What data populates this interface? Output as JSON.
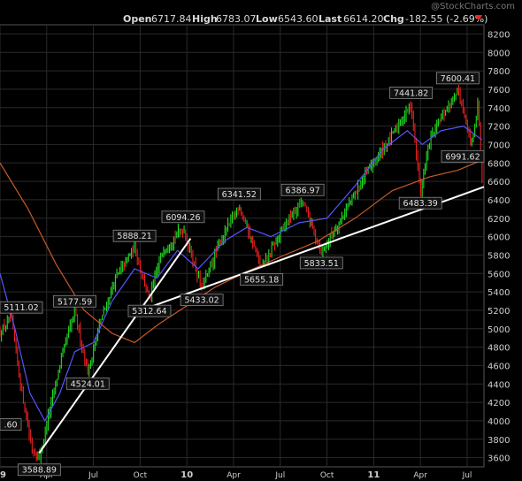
{
  "header": {
    "watermark": "@StockCharts.com",
    "open_label": "Open",
    "open_value": "6717.84",
    "high_label": "High",
    "high_value": "6783.07",
    "low_label": "Low",
    "low_value": "6543.60",
    "last_label": "Last",
    "last_value": "6614.20",
    "chg_label": "Chg",
    "chg_value": "-182.55 (-2.69%)",
    "chg_icon": "down-triangle-icon",
    "chg_color": "#ff2020"
  },
  "colors": {
    "background": "#000000",
    "grid": "#2a2a2a",
    "up": "#22dd22",
    "down": "#ee2020",
    "ma_short": "#5555ff",
    "ma_long": "#c85a28",
    "trendline": "#ffffff"
  },
  "chart_data": {
    "type": "candlestick",
    "ylim": [
      3500,
      8300
    ],
    "yticks": [
      3600,
      3800,
      4000,
      4200,
      4400,
      4600,
      4800,
      5000,
      5200,
      5400,
      5600,
      5800,
      6000,
      6200,
      6400,
      6600,
      6800,
      7000,
      7200,
      7400,
      7600,
      7800,
      8000,
      8200
    ],
    "xticks": [
      "09",
      "Apr",
      "Jul",
      "Oct",
      "10",
      "Apr",
      "Jul",
      "Oct",
      "11",
      "Apr",
      "Jul"
    ],
    "xtick_t": [
      0,
      0.25,
      0.5,
      0.75,
      1,
      1.25,
      1.5,
      1.75,
      2,
      2.25,
      2.5
    ],
    "x_range_t": [
      0,
      2.59
    ],
    "anchors": [
      {
        "t": 0.0,
        "v": 4950
      },
      {
        "t": 0.06,
        "v": 5111.02
      },
      {
        "t": 0.11,
        "v": 4400
      },
      {
        "t": 0.17,
        "v": 3700
      },
      {
        "t": 0.21,
        "v": 3588.89
      },
      {
        "t": 0.27,
        "v": 4150
      },
      {
        "t": 0.33,
        "v": 4700
      },
      {
        "t": 0.4,
        "v": 5177.59
      },
      {
        "t": 0.47,
        "v": 4524.01
      },
      {
        "t": 0.54,
        "v": 5100
      },
      {
        "t": 0.62,
        "v": 5550
      },
      {
        "t": 0.72,
        "v": 5888.21
      },
      {
        "t": 0.8,
        "v": 5312.64
      },
      {
        "t": 0.87,
        "v": 5850
      },
      {
        "t": 0.98,
        "v": 6094.26
      },
      {
        "t": 1.08,
        "v": 5433.02
      },
      {
        "t": 1.18,
        "v": 5950
      },
      {
        "t": 1.28,
        "v": 6341.52
      },
      {
        "t": 1.4,
        "v": 5655.18
      },
      {
        "t": 1.53,
        "v": 6150
      },
      {
        "t": 1.62,
        "v": 6386.97
      },
      {
        "t": 1.72,
        "v": 5833.51
      },
      {
        "t": 1.84,
        "v": 6250
      },
      {
        "t": 1.98,
        "v": 6750
      },
      {
        "t": 2.1,
        "v": 7100
      },
      {
        "t": 2.2,
        "v": 7441.82
      },
      {
        "t": 2.25,
        "v": 6483.39
      },
      {
        "t": 2.3,
        "v": 7050
      },
      {
        "t": 2.38,
        "v": 7350
      },
      {
        "t": 2.45,
        "v": 7600.41
      },
      {
        "t": 2.52,
        "v": 6991.62
      },
      {
        "t": 2.56,
        "v": 7450
      },
      {
        "t": 2.58,
        "v": 6614.2
      }
    ],
    "ma_short": [
      {
        "t": 0.0,
        "v": 5600
      },
      {
        "t": 0.08,
        "v": 5000
      },
      {
        "t": 0.16,
        "v": 4300
      },
      {
        "t": 0.24,
        "v": 4000
      },
      {
        "t": 0.32,
        "v": 4300
      },
      {
        "t": 0.4,
        "v": 4750
      },
      {
        "t": 0.5,
        "v": 4850
      },
      {
        "t": 0.6,
        "v": 5300
      },
      {
        "t": 0.72,
        "v": 5650
      },
      {
        "t": 0.84,
        "v": 5550
      },
      {
        "t": 0.95,
        "v": 5850
      },
      {
        "t": 1.06,
        "v": 5650
      },
      {
        "t": 1.2,
        "v": 5950
      },
      {
        "t": 1.32,
        "v": 6100
      },
      {
        "t": 1.45,
        "v": 6000
      },
      {
        "t": 1.6,
        "v": 6150
      },
      {
        "t": 1.75,
        "v": 6200
      },
      {
        "t": 1.9,
        "v": 6550
      },
      {
        "t": 2.05,
        "v": 6950
      },
      {
        "t": 2.18,
        "v": 7150
      },
      {
        "t": 2.26,
        "v": 7000
      },
      {
        "t": 2.36,
        "v": 7150
      },
      {
        "t": 2.48,
        "v": 7200
      },
      {
        "t": 2.58,
        "v": 7050
      }
    ],
    "ma_long": [
      {
        "t": 0.0,
        "v": 6800
      },
      {
        "t": 0.15,
        "v": 6300
      },
      {
        "t": 0.3,
        "v": 5700
      },
      {
        "t": 0.45,
        "v": 5200
      },
      {
        "t": 0.6,
        "v": 4950
      },
      {
        "t": 0.72,
        "v": 4850
      },
      {
        "t": 0.85,
        "v": 5050
      },
      {
        "t": 1.0,
        "v": 5250
      },
      {
        "t": 1.15,
        "v": 5450
      },
      {
        "t": 1.3,
        "v": 5600
      },
      {
        "t": 1.5,
        "v": 5780
      },
      {
        "t": 1.7,
        "v": 5950
      },
      {
        "t": 1.9,
        "v": 6200
      },
      {
        "t": 2.1,
        "v": 6500
      },
      {
        "t": 2.3,
        "v": 6650
      },
      {
        "t": 2.45,
        "v": 6720
      },
      {
        "t": 2.58,
        "v": 6830
      }
    ],
    "trendlines": [
      {
        "t1": 0.21,
        "v1": 3650,
        "t2": 1.02,
        "v2": 5980
      },
      {
        "t1": 0.7,
        "v1": 5160,
        "t2": 2.59,
        "v2": 6540
      }
    ],
    "annotations": [
      {
        "text": "5111.02",
        "t": 0.06,
        "v": 5111.02,
        "pos": "above"
      },
      {
        "text": "3588.89",
        "t": 0.21,
        "v": 3588.89,
        "pos": "below"
      },
      {
        "text": "5177.59",
        "t": 0.4,
        "v": 5177.59,
        "pos": "above"
      },
      {
        "text": "4524.01",
        "t": 0.47,
        "v": 4524.01,
        "pos": "below"
      },
      {
        "text": "5888.21",
        "t": 0.72,
        "v": 5888.21,
        "pos": "above"
      },
      {
        "text": "5312.64",
        "t": 0.8,
        "v": 5312.64,
        "pos": "below"
      },
      {
        "text": "6094.26",
        "t": 0.98,
        "v": 6094.26,
        "pos": "above"
      },
      {
        "text": "5433.02",
        "t": 1.08,
        "v": 5433.02,
        "pos": "below"
      },
      {
        "text": "6341.52",
        "t": 1.28,
        "v": 6341.52,
        "pos": "above"
      },
      {
        "text": "5655.18",
        "t": 1.4,
        "v": 5655.18,
        "pos": "below"
      },
      {
        "text": "6386.97",
        "t": 1.62,
        "v": 6386.97,
        "pos": "above"
      },
      {
        "text": "5833.51",
        "t": 1.72,
        "v": 5833.51,
        "pos": "below"
      },
      {
        "text": "7441.82",
        "t": 2.2,
        "v": 7441.82,
        "pos": "above"
      },
      {
        "text": "6483.39",
        "t": 2.25,
        "v": 6483.39,
        "pos": "below"
      },
      {
        "text": "7600.41",
        "t": 2.45,
        "v": 7600.41,
        "pos": "above"
      },
      {
        "text": "6991.62",
        "t": 2.52,
        "v": 6991.62,
        "pos": "below"
      },
      {
        "text": ".60",
        "t": 0.0,
        "v": 3960,
        "pos": "left"
      }
    ]
  }
}
